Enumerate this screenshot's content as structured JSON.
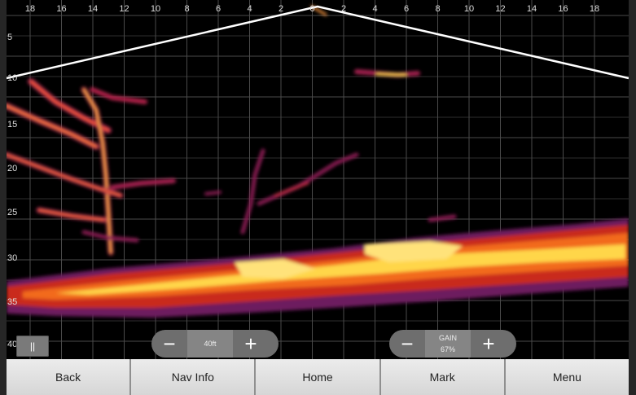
{
  "range_labels": [
    "18",
    "16",
    "14",
    "12",
    "10",
    "8",
    "6",
    "4",
    "2",
    "0",
    "2",
    "4",
    "6",
    "8",
    "10",
    "12",
    "14",
    "16",
    "18"
  ],
  "depth_labels": [
    "5",
    "10",
    "15",
    "20",
    "25",
    "30",
    "35",
    "40"
  ],
  "pause": {
    "glyph": "||"
  },
  "range_control": {
    "minus": "−",
    "value": "40ft",
    "plus": "+"
  },
  "gain_control": {
    "minus": "−",
    "label": "GAIN",
    "value": "67%",
    "plus": "+"
  },
  "bottom_bar": [
    "Back",
    "Nav Info",
    "Home",
    "Mark",
    "Menu"
  ],
  "colors": {
    "grid": "#4a4a4a",
    "cone": "#ffffff",
    "sonar_low": "#7a1f6e",
    "sonar_mid": "#e8321e",
    "sonar_high": "#ffe060"
  }
}
